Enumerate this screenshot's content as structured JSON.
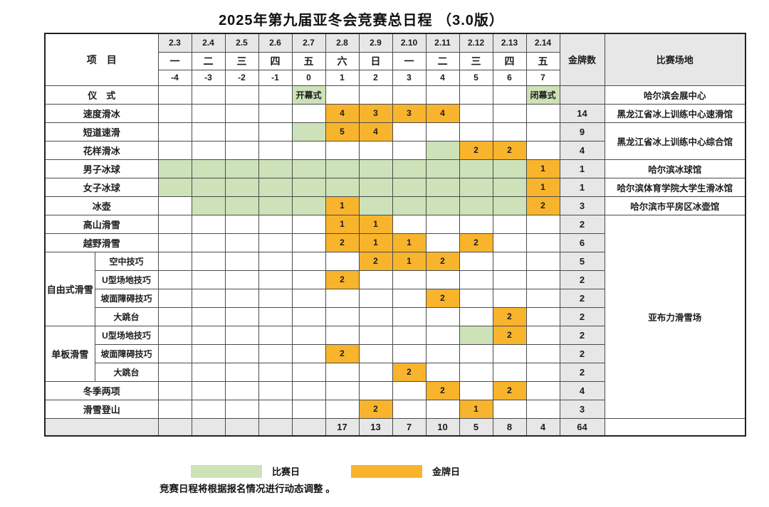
{
  "title": "2025年第九届亚冬会竞赛总日程 （3.0版）",
  "table": {
    "project_header": "项　目",
    "gold_header": "金牌数",
    "venue_header": "比赛场地",
    "dates": [
      "2.3",
      "2.4",
      "2.5",
      "2.6",
      "2.7",
      "2.8",
      "2.9",
      "2.10",
      "2.11",
      "2.12",
      "2.13",
      "2.14"
    ],
    "weekdays": [
      "一",
      "二",
      "三",
      "四",
      "五",
      "六",
      "日",
      "一",
      "二",
      "三",
      "四",
      "五"
    ],
    "day_offsets": [
      "-4",
      "-3",
      "-2",
      "-1",
      "0",
      "1",
      "2",
      "3",
      "4",
      "5",
      "6",
      "7"
    ],
    "rows": [
      {
        "label": "仪　式",
        "cells": [
          "",
          "",
          "",
          "",
          "G:开幕式",
          "",
          "",
          "",
          "",
          "",
          "",
          "G:闭幕式"
        ],
        "medals": "",
        "venue": "哈尔滨会展中心",
        "venue_span": 1
      },
      {
        "label": "速度滑冰",
        "cells": [
          "",
          "",
          "",
          "",
          "",
          "O:4",
          "O:3",
          "O:3",
          "O:4",
          "",
          "",
          ""
        ],
        "medals": "14",
        "venue": "黑龙江省冰上训练中心速滑馆",
        "venue_span": 1
      },
      {
        "label": "短道速滑",
        "cells": [
          "",
          "",
          "",
          "",
          "G",
          "O:5",
          "O:4",
          "",
          "",
          "",
          "",
          ""
        ],
        "medals": "9",
        "venue": "黑龙江省冰上训练中心综合馆",
        "venue_span": 2
      },
      {
        "label": "花样滑冰",
        "cells": [
          "",
          "",
          "",
          "",
          "",
          "",
          "",
          "",
          "G",
          "O:2",
          "O:2",
          ""
        ],
        "medals": "4"
      },
      {
        "label": "男子冰球",
        "cells": [
          "G",
          "G",
          "G",
          "G",
          "G",
          "G",
          "G",
          "G",
          "G",
          "G",
          "G",
          "O:1"
        ],
        "medals": "1",
        "venue": "哈尔滨冰球馆",
        "venue_span": 1
      },
      {
        "label": "女子冰球",
        "cells": [
          "G",
          "G",
          "G",
          "G",
          "G",
          "G",
          "G",
          "G",
          "G",
          "G",
          "G",
          "O:1"
        ],
        "medals": "1",
        "venue": "哈尔滨体育学院大学生滑冰馆",
        "venue_span": 1
      },
      {
        "label": "冰壶",
        "cells": [
          "",
          "G",
          "G",
          "G",
          "G",
          "O:1",
          "G",
          "G",
          "G",
          "G",
          "G",
          "O:2"
        ],
        "medals": "3",
        "venue": "哈尔滨市平房区冰壶馆",
        "venue_span": 1
      },
      {
        "label": "高山滑雪",
        "cells": [
          "",
          "",
          "",
          "",
          "",
          "O:1",
          "O:1",
          "",
          "",
          "",
          "",
          ""
        ],
        "medals": "2",
        "venue": "亚布力滑雪场",
        "venue_span": 11
      },
      {
        "label": "越野滑雪",
        "cells": [
          "",
          "",
          "",
          "",
          "",
          "O:2",
          "O:1",
          "O:1",
          "",
          "O:2",
          "",
          ""
        ],
        "medals": "6"
      },
      {
        "group": "自由式滑雪",
        "group_span": 4,
        "label": "空中技巧",
        "cells": [
          "",
          "",
          "",
          "",
          "",
          "",
          "O:2",
          "O:1",
          "O:2",
          "",
          "",
          ""
        ],
        "medals": "5"
      },
      {
        "in_group": true,
        "label": "U型场地技巧",
        "cells": [
          "",
          "",
          "",
          "",
          "",
          "O:2",
          "",
          "",
          "",
          "",
          "",
          ""
        ],
        "medals": "2"
      },
      {
        "in_group": true,
        "label": "坡面障碍技巧",
        "cells": [
          "",
          "",
          "",
          "",
          "",
          "",
          "",
          "",
          "O:2",
          "",
          "",
          ""
        ],
        "medals": "2"
      },
      {
        "in_group": true,
        "label": "大跳台",
        "cells": [
          "",
          "",
          "",
          "",
          "",
          "",
          "",
          "",
          "",
          "",
          "O:2",
          ""
        ],
        "medals": "2"
      },
      {
        "group": "单板滑雪",
        "group_span": 3,
        "label": "U型场地技巧",
        "cells": [
          "",
          "",
          "",
          "",
          "",
          "",
          "",
          "",
          "",
          "G",
          "O:2",
          ""
        ],
        "medals": "2"
      },
      {
        "in_group": true,
        "label": "坡面障碍技巧",
        "cells": [
          "",
          "",
          "",
          "",
          "",
          "O:2",
          "",
          "",
          "",
          "",
          "",
          ""
        ],
        "medals": "2"
      },
      {
        "in_group": true,
        "label": "大跳台",
        "cells": [
          "",
          "",
          "",
          "",
          "",
          "",
          "",
          "O:2",
          "",
          "",
          "",
          ""
        ],
        "medals": "2"
      },
      {
        "label": "冬季两项",
        "cells": [
          "",
          "",
          "",
          "",
          "",
          "",
          "",
          "",
          "O:2",
          "",
          "O:2",
          ""
        ],
        "medals": "4"
      },
      {
        "label": "滑雪登山",
        "cells": [
          "",
          "",
          "",
          "",
          "",
          "",
          "O:2",
          "",
          "",
          "O:1",
          "",
          ""
        ],
        "medals": "3"
      }
    ],
    "totals": {
      "cells": [
        "",
        "",
        "",
        "",
        "",
        "17",
        "13",
        "7",
        "10",
        "5",
        "8",
        "4"
      ],
      "medals": "64",
      "venue": ""
    }
  },
  "legend": {
    "competition_day": {
      "label": "比赛日",
      "color": "#cde2b8"
    },
    "gold_day": {
      "label": "金牌日",
      "color": "#f8b42c"
    }
  },
  "note": "竞赛日程将根据报名情况进行动态调整 。",
  "colors": {
    "green_competition_day": "#cde2b8",
    "gold_medal_day": "#f8b42c",
    "header_gray": "#e8e7e7",
    "gold_cell_text": "#8a3a00",
    "border": "#4b4b4b"
  }
}
